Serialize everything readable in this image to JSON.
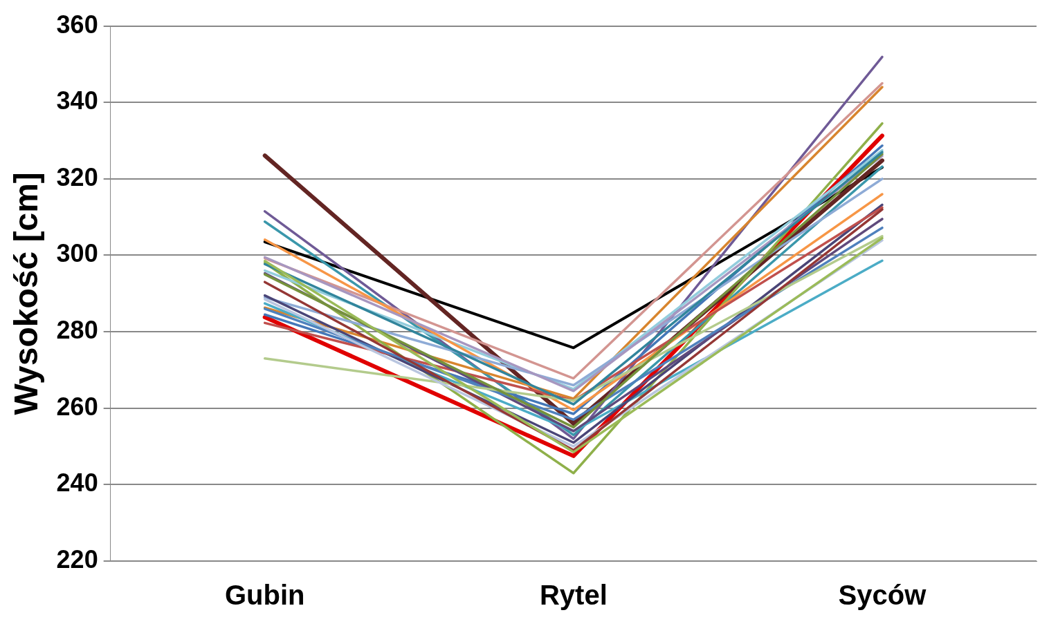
{
  "chart_data": {
    "type": "line",
    "ylabel": "Wysokość [cm]",
    "categories": [
      "Gubin",
      "Rytel",
      "Syców"
    ],
    "ylim": [
      220,
      360
    ],
    "yticks": [
      220,
      240,
      260,
      280,
      300,
      320,
      340,
      360
    ],
    "grid": "y",
    "legend": false,
    "marker": "none",
    "line_style": "solid",
    "series": [
      {
        "color": "#000000",
        "values": [
          303.5,
          275.8,
          323
        ]
      },
      {
        "color": "#e00000",
        "values": [
          283.8,
          247.5,
          331.3
        ]
      },
      {
        "color": "#632523",
        "values": [
          326.1,
          256,
          324.8
        ]
      },
      {
        "color": "#6f5a96",
        "values": [
          311.5,
          252,
          351.9
        ]
      },
      {
        "color": "#3a97ab",
        "values": [
          308.8,
          253,
          323.2
        ]
      },
      {
        "color": "#d39591",
        "values": [
          299.2,
          267.8,
          345
        ]
      },
      {
        "color": "#d8852e",
        "values": [
          286.3,
          262.5,
          344
        ]
      },
      {
        "color": "#8fb04a",
        "values": [
          298,
          243,
          334.5
        ]
      },
      {
        "color": "#4477b8",
        "values": [
          284.5,
          258.5,
          328.7
        ]
      },
      {
        "color": "#4bacc6",
        "values": [
          287.4,
          254,
          298.6
        ]
      },
      {
        "color": "#93cddd",
        "values": [
          296,
          265,
          327.5
        ]
      },
      {
        "color": "#f79646",
        "values": [
          304.1,
          259.5,
          316
        ]
      },
      {
        "color": "#8eabd6",
        "values": [
          289,
          266,
          320
        ]
      },
      {
        "color": "#4a4577",
        "values": [
          289.5,
          251,
          313.2
        ]
      },
      {
        "color": "#c0504d",
        "values": [
          282.3,
          262,
          312.5
        ]
      },
      {
        "color": "#5f4a7c",
        "values": [
          295.3,
          254,
          309.5
        ]
      },
      {
        "color": "#4f81bd",
        "values": [
          286,
          257,
          307.2
        ]
      },
      {
        "color": "#b3cb8c",
        "values": [
          273,
          262,
          305
        ]
      },
      {
        "color": "#b9c6e0",
        "values": [
          288.5,
          250,
          303.9
        ]
      },
      {
        "color": "#a797c0",
        "values": [
          299.5,
          264.5,
          326
        ]
      },
      {
        "color": "#76923c",
        "values": [
          295,
          255,
          326.5
        ]
      },
      {
        "color": "#953735",
        "values": [
          293,
          249,
          312
        ]
      },
      {
        "color": "#31859c",
        "values": [
          297.7,
          261,
          327
        ]
      },
      {
        "color": "#9bbb59",
        "values": [
          298.5,
          248.5,
          304.5
        ]
      }
    ]
  }
}
